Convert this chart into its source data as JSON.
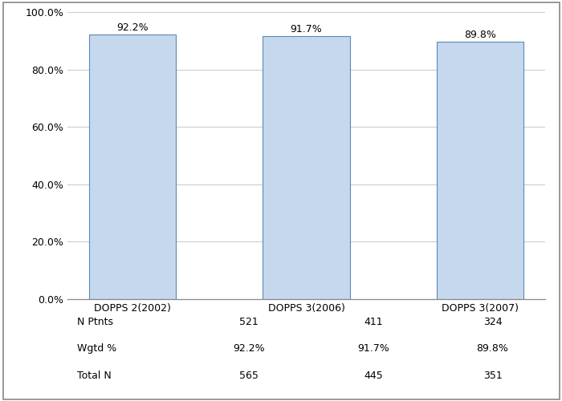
{
  "categories": [
    "DOPPS 2(2002)",
    "DOPPS 3(2006)",
    "DOPPS 3(2007)"
  ],
  "values": [
    92.2,
    91.7,
    89.8
  ],
  "bar_color": "#c5d8ed",
  "bar_edge_color": "#5a8ab5",
  "bar_width": 0.5,
  "ylim": [
    0,
    100
  ],
  "yticks": [
    0,
    20,
    40,
    60,
    80,
    100
  ],
  "ytick_labels": [
    "0.0%",
    "20.0%",
    "40.0%",
    "60.0%",
    "80.0%",
    "100.0%"
  ],
  "grid_color": "#cccccc",
  "background_color": "#ffffff",
  "tick_fontsize": 9,
  "bar_label_fontsize": 9,
  "table_rows": [
    "N Ptnts",
    "Wgtd %",
    "Total N"
  ],
  "table_data": [
    [
      "521",
      "411",
      "324"
    ],
    [
      "92.2%",
      "91.7%",
      "89.8%"
    ],
    [
      "565",
      "445",
      "351"
    ]
  ]
}
